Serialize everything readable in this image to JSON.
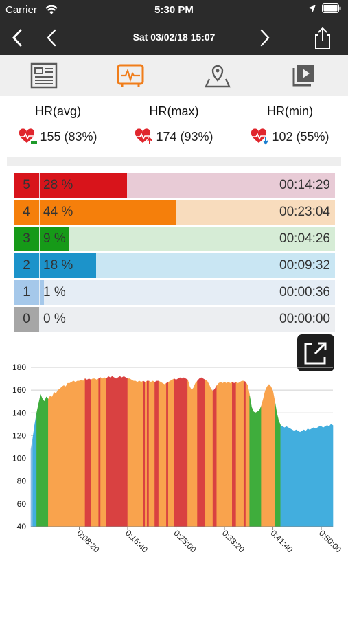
{
  "status_bar": {
    "carrier": "Carrier",
    "time": "5:30 PM"
  },
  "nav": {
    "title": "Sat 03/02/18 15:07"
  },
  "toolbar": {
    "tabs": [
      "details-icon",
      "heart-rate-icon",
      "map-icon",
      "playback-icon"
    ],
    "active": 1,
    "accent": "#f07d1a"
  },
  "stats": [
    {
      "label": "HR(avg)",
      "value": "155 (83%)",
      "icon": "heart-avg-icon"
    },
    {
      "label": "HR(max)",
      "value": "174 (93%)",
      "icon": "heart-max-icon"
    },
    {
      "label": "HR(min)",
      "value": "102 (55%)",
      "icon": "heart-min-icon"
    }
  ],
  "zones": [
    {
      "zone": "5",
      "percent_label": "28 %",
      "percent": 28,
      "duration": "00:14:29",
      "color": "#d8141b",
      "light": "#e8cbd6",
      "numColor": "#d8141b"
    },
    {
      "zone": "4",
      "percent_label": "44 %",
      "percent": 44,
      "duration": "00:23:04",
      "color": "#f57f0b",
      "light": "#f8dcbd",
      "numColor": "#f57f0b"
    },
    {
      "zone": "3",
      "percent_label": "9 %",
      "percent": 9,
      "duration": "00:04:26",
      "color": "#169a18",
      "light": "#d6ecd6",
      "numColor": "#169a18"
    },
    {
      "zone": "2",
      "percent_label": "18 %",
      "percent": 18,
      "duration": "00:09:32",
      "color": "#1c93ca",
      "light": "#c9e6f3",
      "numColor": "#1c93ca"
    },
    {
      "zone": "1",
      "percent_label": "1 %",
      "percent": 1,
      "duration": "00:00:36",
      "color": "#a5c8ea",
      "light": "#e5edf5",
      "numColor": "#a5c8ea"
    },
    {
      "zone": "0",
      "percent_label": "0 %",
      "percent": 0,
      "duration": "00:00:00",
      "color": "#a6a6a6",
      "light": "#eceef1",
      "numColor": "#a6a6a6"
    }
  ],
  "chart_data": {
    "type": "area",
    "ylim": [
      40,
      180
    ],
    "yticks": [
      "40",
      "60",
      "80",
      "100",
      "120",
      "140",
      "160",
      "180"
    ],
    "xlim": [
      0,
      3120
    ],
    "xticks": [
      {
        "label": "0:08:20",
        "t": 500
      },
      {
        "label": "0:16:40",
        "t": 1000
      },
      {
        "label": "0:25:00",
        "t": 1500
      },
      {
        "label": "0:33:20",
        "t": 2000
      },
      {
        "label": "0:41:40",
        "t": 2500
      },
      {
        "label": "0:50:00",
        "t": 3000
      }
    ],
    "grid": true,
    "zone_colors": {
      "1": "#88bde8",
      "2": "#42aede",
      "3": "#3fad3c",
      "4": "#f9a34d",
      "5": "#d94141"
    },
    "points": [
      [
        0,
        108
      ],
      [
        20,
        118
      ],
      [
        40,
        130
      ],
      [
        60,
        140
      ],
      [
        80,
        148
      ],
      [
        100,
        156
      ],
      [
        120,
        152
      ],
      [
        140,
        150
      ],
      [
        160,
        154
      ],
      [
        180,
        152
      ],
      [
        200,
        155
      ],
      [
        220,
        154
      ],
      [
        240,
        158
      ],
      [
        260,
        157
      ],
      [
        280,
        160
      ],
      [
        300,
        161
      ],
      [
        320,
        163
      ],
      [
        340,
        164
      ],
      [
        360,
        163
      ],
      [
        380,
        166
      ],
      [
        400,
        166
      ],
      [
        420,
        167
      ],
      [
        440,
        168
      ],
      [
        460,
        167
      ],
      [
        480,
        168
      ],
      [
        500,
        168
      ],
      [
        520,
        169
      ],
      [
        540,
        168
      ],
      [
        560,
        170
      ],
      [
        580,
        169
      ],
      [
        600,
        170
      ],
      [
        620,
        169
      ],
      [
        640,
        170
      ],
      [
        660,
        170
      ],
      [
        680,
        169
      ],
      [
        700,
        170
      ],
      [
        720,
        171
      ],
      [
        740,
        170
      ],
      [
        760,
        171
      ],
      [
        780,
        170
      ],
      [
        800,
        172
      ],
      [
        820,
        171
      ],
      [
        840,
        172
      ],
      [
        860,
        171
      ],
      [
        880,
        170
      ],
      [
        900,
        171
      ],
      [
        920,
        172
      ],
      [
        940,
        171
      ],
      [
        960,
        172
      ],
      [
        980,
        171
      ],
      [
        1000,
        170
      ],
      [
        1020,
        170
      ],
      [
        1040,
        169
      ],
      [
        1060,
        168
      ],
      [
        1080,
        168
      ],
      [
        1100,
        167
      ],
      [
        1120,
        168
      ],
      [
        1140,
        167
      ],
      [
        1160,
        168
      ],
      [
        1180,
        167
      ],
      [
        1200,
        168
      ],
      [
        1220,
        168
      ],
      [
        1240,
        167
      ],
      [
        1260,
        168
      ],
      [
        1280,
        167
      ],
      [
        1300,
        168
      ],
      [
        1320,
        168
      ],
      [
        1340,
        167
      ],
      [
        1360,
        166
      ],
      [
        1380,
        165
      ],
      [
        1400,
        166
      ],
      [
        1420,
        167
      ],
      [
        1440,
        168
      ],
      [
        1460,
        169
      ],
      [
        1480,
        170
      ],
      [
        1500,
        169
      ],
      [
        1520,
        170
      ],
      [
        1540,
        171
      ],
      [
        1560,
        170
      ],
      [
        1580,
        171
      ],
      [
        1600,
        170
      ],
      [
        1620,
        169
      ],
      [
        1640,
        163
      ],
      [
        1660,
        160
      ],
      [
        1680,
        162
      ],
      [
        1700,
        166
      ],
      [
        1720,
        168
      ],
      [
        1740,
        170
      ],
      [
        1760,
        171
      ],
      [
        1780,
        170
      ],
      [
        1800,
        169
      ],
      [
        1820,
        168
      ],
      [
        1840,
        165
      ],
      [
        1860,
        161
      ],
      [
        1880,
        159
      ],
      [
        1900,
        161
      ],
      [
        1920,
        164
      ],
      [
        1940,
        166
      ],
      [
        1960,
        167
      ],
      [
        1980,
        166
      ],
      [
        2000,
        167
      ],
      [
        2020,
        166
      ],
      [
        2040,
        167
      ],
      [
        2060,
        166
      ],
      [
        2080,
        167
      ],
      [
        2100,
        166
      ],
      [
        2120,
        167
      ],
      [
        2140,
        166
      ],
      [
        2160,
        167
      ],
      [
        2180,
        168
      ],
      [
        2200,
        168
      ],
      [
        2220,
        167
      ],
      [
        2240,
        164
      ],
      [
        2260,
        155
      ],
      [
        2280,
        145
      ],
      [
        2300,
        141
      ],
      [
        2320,
        140
      ],
      [
        2340,
        141
      ],
      [
        2360,
        142
      ],
      [
        2380,
        146
      ],
      [
        2400,
        152
      ],
      [
        2420,
        159
      ],
      [
        2440,
        163
      ],
      [
        2460,
        165
      ],
      [
        2480,
        163
      ],
      [
        2500,
        159
      ],
      [
        2520,
        150
      ],
      [
        2540,
        140
      ],
      [
        2560,
        133
      ],
      [
        2580,
        129
      ],
      [
        2600,
        128
      ],
      [
        2620,
        127
      ],
      [
        2640,
        128
      ],
      [
        2660,
        127
      ],
      [
        2680,
        126
      ],
      [
        2700,
        125
      ],
      [
        2720,
        124
      ],
      [
        2740,
        125
      ],
      [
        2760,
        124
      ],
      [
        2780,
        123
      ],
      [
        2800,
        124
      ],
      [
        2820,
        125
      ],
      [
        2840,
        124
      ],
      [
        2860,
        126
      ],
      [
        2880,
        125
      ],
      [
        2900,
        126
      ],
      [
        2920,
        127
      ],
      [
        2940,
        126
      ],
      [
        2960,
        127
      ],
      [
        2980,
        128
      ],
      [
        3000,
        128
      ],
      [
        3020,
        127
      ],
      [
        3040,
        128
      ],
      [
        3060,
        129
      ],
      [
        3080,
        128
      ],
      [
        3100,
        130
      ],
      [
        3120,
        129
      ]
    ],
    "segments": [
      [
        0,
        20,
        "1"
      ],
      [
        20,
        60,
        "2"
      ],
      [
        60,
        180,
        "3"
      ],
      [
        180,
        560,
        "4"
      ],
      [
        560,
        620,
        "5"
      ],
      [
        620,
        700,
        "4"
      ],
      [
        700,
        720,
        "5"
      ],
      [
        720,
        780,
        "4"
      ],
      [
        780,
        1000,
        "5"
      ],
      [
        1000,
        1160,
        "4"
      ],
      [
        1160,
        1180,
        "5"
      ],
      [
        1180,
        1200,
        "4"
      ],
      [
        1200,
        1220,
        "5"
      ],
      [
        1220,
        1280,
        "4"
      ],
      [
        1280,
        1320,
        "5"
      ],
      [
        1320,
        1400,
        "4"
      ],
      [
        1400,
        1420,
        "5"
      ],
      [
        1420,
        1480,
        "4"
      ],
      [
        1480,
        1620,
        "5"
      ],
      [
        1620,
        1720,
        "4"
      ],
      [
        1720,
        1800,
        "5"
      ],
      [
        1800,
        1880,
        "4"
      ],
      [
        1880,
        1920,
        "5"
      ],
      [
        1920,
        2080,
        "4"
      ],
      [
        2080,
        2120,
        "5"
      ],
      [
        2120,
        2200,
        "4"
      ],
      [
        2200,
        2220,
        "5"
      ],
      [
        2220,
        2260,
        "4"
      ],
      [
        2260,
        2380,
        "3"
      ],
      [
        2380,
        2520,
        "4"
      ],
      [
        2520,
        2580,
        "3"
      ],
      [
        2580,
        3120,
        "2"
      ]
    ]
  }
}
